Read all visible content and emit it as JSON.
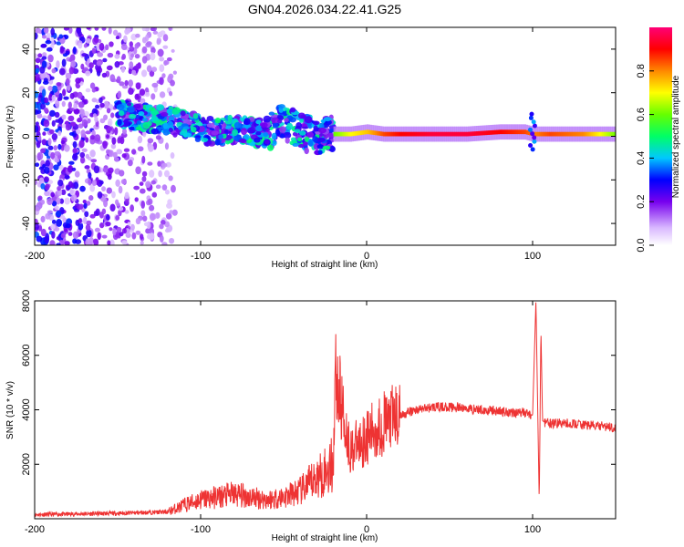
{
  "title": "GN04.2026.034.22.41.G25",
  "chart_data": [
    {
      "type": "heatmap",
      "title": "GN04.2026.034.22.41.G25",
      "xlabel": "Height of straight line (km)",
      "ylabel": "Frequency (Hz)",
      "xlim": [
        -200,
        150
      ],
      "ylim": [
        -50,
        50
      ],
      "x_ticks": [
        "-200",
        "-100",
        "0",
        "100"
      ],
      "y_ticks": [
        "-40",
        "-20",
        "0",
        "20",
        "40"
      ],
      "colorbar": {
        "label": "Normalized spectral amplitude",
        "range": [
          0,
          1
        ],
        "ticks": [
          "0.0",
          "0.2",
          "0.4",
          "0.6",
          "0.8"
        ]
      },
      "ridge": [
        {
          "x": -150,
          "freq": 10,
          "amp": 0.35
        },
        {
          "x": -140,
          "freq": 9,
          "amp": 0.4
        },
        {
          "x": -130,
          "freq": 8,
          "amp": 0.45
        },
        {
          "x": -120,
          "freq": 7,
          "amp": 0.45
        },
        {
          "x": -110,
          "freq": 6,
          "amp": 0.4
        },
        {
          "x": -100,
          "freq": 3,
          "amp": 0.45
        },
        {
          "x": -90,
          "freq": 2,
          "amp": 0.45
        },
        {
          "x": -80,
          "freq": 3,
          "amp": 0.4
        },
        {
          "x": -70,
          "freq": 2,
          "amp": 0.45
        },
        {
          "x": -60,
          "freq": 1,
          "amp": 0.45
        },
        {
          "x": -50,
          "freq": 7,
          "amp": 0.4
        },
        {
          "x": -40,
          "freq": 2,
          "amp": 0.45
        },
        {
          "x": -30,
          "freq": 0,
          "amp": 0.45
        },
        {
          "x": -20,
          "freq": 1,
          "amp": 0.6
        },
        {
          "x": -10,
          "freq": 1,
          "amp": 0.7
        },
        {
          "x": 0,
          "freq": 2,
          "amp": 0.75
        },
        {
          "x": 10,
          "freq": 1,
          "amp": 0.85
        },
        {
          "x": 20,
          "freq": 1,
          "amp": 0.9
        },
        {
          "x": 40,
          "freq": 1,
          "amp": 0.95
        },
        {
          "x": 60,
          "freq": 1,
          "amp": 0.95
        },
        {
          "x": 80,
          "freq": 2,
          "amp": 0.9
        },
        {
          "x": 95,
          "freq": 2,
          "amp": 0.85
        },
        {
          "x": 100,
          "freq": 1,
          "amp": 0.8
        },
        {
          "x": 110,
          "freq": 1,
          "amp": 0.85
        },
        {
          "x": 130,
          "freq": 1,
          "amp": 0.8
        },
        {
          "x": 150,
          "freq": 1,
          "amp": 0.6
        }
      ]
    },
    {
      "type": "line",
      "xlabel": "Height of straight line (km)",
      "ylabel": "SNR (10 * v/v)",
      "xlim": [
        -200,
        150
      ],
      "ylim": [
        0,
        8000
      ],
      "x_ticks": [
        "-200",
        "-100",
        "0",
        "100"
      ],
      "y_ticks": [
        "2000",
        "4000",
        "6000",
        "8000"
      ],
      "color": "#ee3333",
      "series": [
        {
          "name": "SNR",
          "x": [
            -200,
            -150,
            -120,
            -110,
            -100,
            -90,
            -80,
            -70,
            -60,
            -50,
            -40,
            -30,
            -20,
            -19,
            -10,
            0,
            10,
            20,
            30,
            40,
            50,
            60,
            70,
            80,
            90,
            95,
            100,
            102,
            104,
            105,
            106,
            108,
            110,
            120,
            130,
            140,
            150
          ],
          "y": [
            150,
            200,
            250,
            500,
            700,
            800,
            900,
            800,
            700,
            800,
            1000,
            1500,
            2000,
            5400,
            2500,
            3000,
            3500,
            3800,
            4000,
            4100,
            4100,
            4050,
            4000,
            3950,
            3900,
            3900,
            3800,
            8000,
            600,
            7000,
            3600,
            3500,
            3500,
            3500,
            3450,
            3400,
            3350
          ]
        }
      ]
    }
  ]
}
